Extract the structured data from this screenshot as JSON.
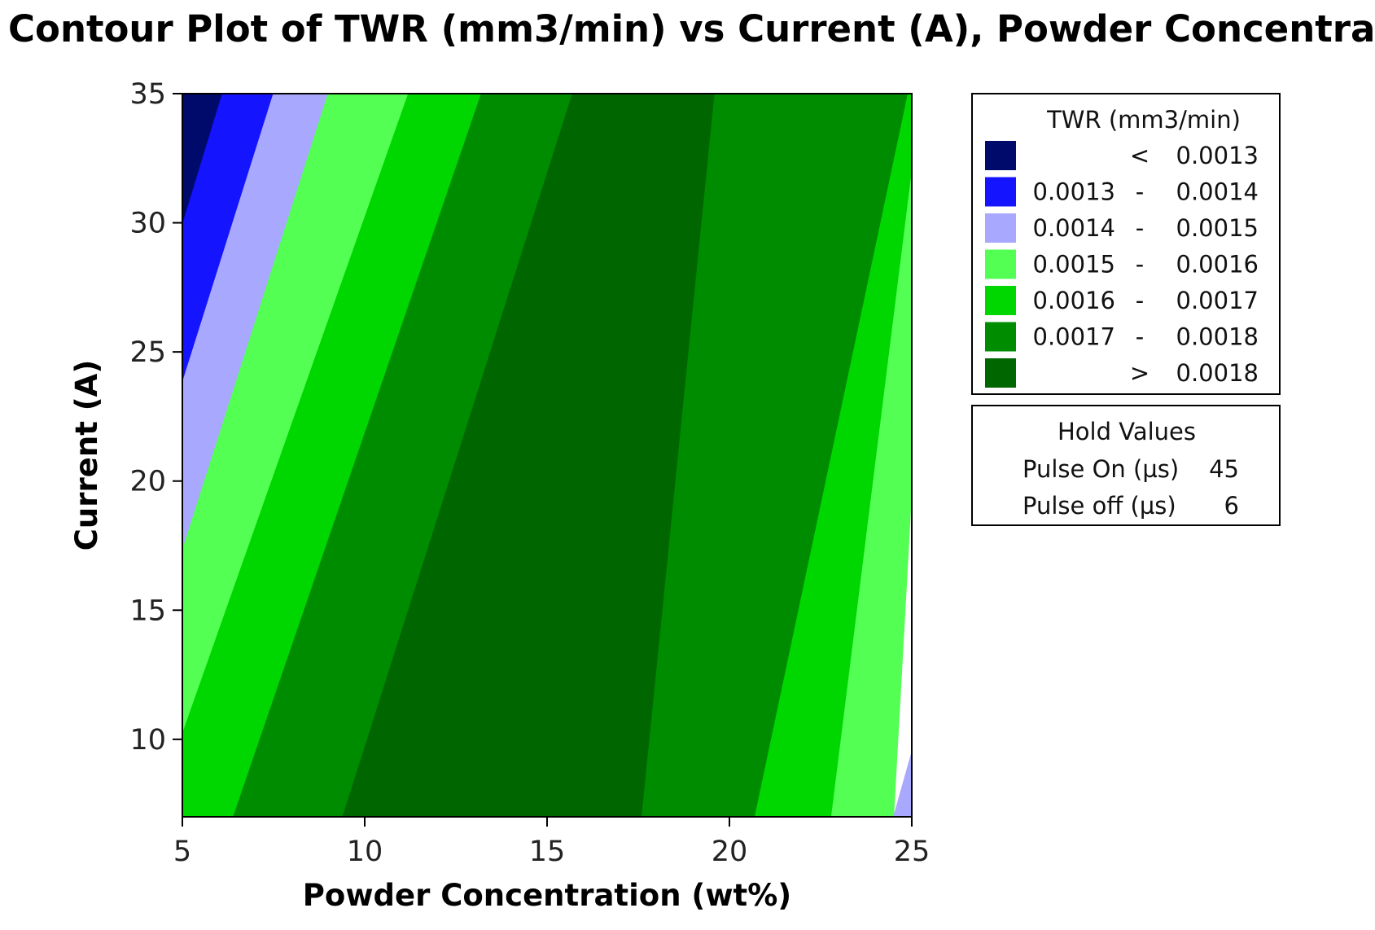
{
  "chart_data": {
    "type": "contour",
    "title": "Contour Plot of TWR (mm3/min) vs Current (A), Powder Concentra",
    "xlabel": "Powder Concentration (wt%)",
    "ylabel": "Current (A)",
    "xlim": [
      5,
      25
    ],
    "ylim": [
      7,
      35
    ],
    "xticks": [
      "5",
      "10",
      "15",
      "20",
      "25"
    ],
    "yticks": [
      "10",
      "15",
      "20",
      "25",
      "30",
      "35"
    ],
    "legend": {
      "title": "TWR (mm3/min)",
      "position": "right",
      "bands": [
        {
          "low": "",
          "op": "<",
          "high": "0.0013",
          "color": "#000a6b"
        },
        {
          "low": "0.0013",
          "op": "-",
          "high": "0.0014",
          "color": "#1414ff"
        },
        {
          "low": "0.0014",
          "op": "-",
          "high": "0.0015",
          "color": "#a8a8ff"
        },
        {
          "low": "0.0015",
          "op": "-",
          "high": "0.0016",
          "color": "#52ff52"
        },
        {
          "low": "0.0016",
          "op": "-",
          "high": "0.0017",
          "color": "#00d600"
        },
        {
          "low": "0.0017",
          "op": "-",
          "high": "0.0018",
          "color": "#008c00"
        },
        {
          "low": "",
          "op": ">",
          "high": "0.0018",
          "color": "#006600"
        }
      ]
    },
    "hold_values": {
      "title": "Hold Values",
      "rows": [
        {
          "label": "Pulse On (µs)",
          "value": "45"
        },
        {
          "label": "Pulse off (µs)",
          "value": "6"
        }
      ]
    },
    "contour_lines": [
      {
        "level": 0.0013,
        "points": [
          [
            5,
            29.9
          ],
          [
            6.1,
            35
          ]
        ]
      },
      {
        "level": 0.0014,
        "points": [
          [
            5,
            23.8
          ],
          [
            7.5,
            35
          ]
        ]
      },
      {
        "level": 0.0015,
        "points": [
          [
            5,
            17.3
          ],
          [
            9.0,
            35
          ]
        ]
      },
      {
        "level": 0.0016,
        "points": [
          [
            5,
            10.2
          ],
          [
            11.2,
            35
          ]
        ]
      },
      {
        "level": 0.0017,
        "points": [
          [
            6.4,
            7
          ],
          [
            13.2,
            35
          ]
        ]
      },
      {
        "level": 0.0018,
        "points": [
          [
            9.4,
            7
          ],
          [
            15.7,
            35
          ]
        ]
      },
      {
        "level": 0.0018,
        "points": [
          [
            17.6,
            7
          ],
          [
            19.6,
            35
          ]
        ]
      },
      {
        "level": 0.0017,
        "points": [
          [
            20.7,
            7
          ],
          [
            24.9,
            35
          ]
        ]
      },
      {
        "level": 0.0016,
        "points": [
          [
            22.8,
            7
          ],
          [
            25,
            31.9
          ]
        ]
      },
      {
        "level": 0.0015,
        "points": [
          [
            24.5,
            7
          ],
          [
            25,
            19.7
          ]
        ]
      },
      {
        "level": 0.0014,
        "points": [
          [
            25,
            9.5
          ]
        ]
      }
    ]
  }
}
